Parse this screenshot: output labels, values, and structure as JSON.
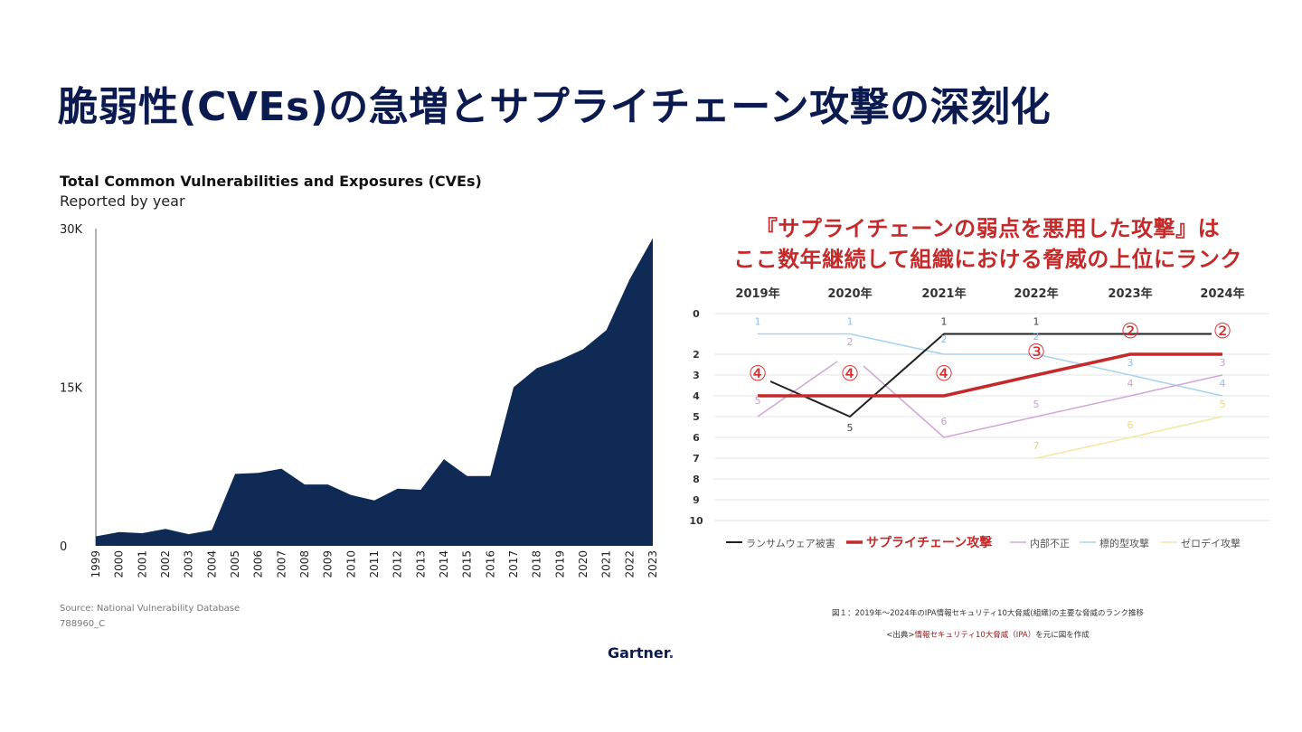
{
  "page": {
    "title": "脆弱性(CVEs)の急増とサプライチェーン攻撃の深刻化"
  },
  "cve_chart": {
    "title": "Total Common Vulnerabilities and Exposures (CVEs)",
    "subtitle": "Reported by year",
    "source": "Source: National Vulnerability Database",
    "id": "788960_C"
  },
  "rank_chart": {
    "headline_line1": "『サプライチェーンの弱点を悪用した攻撃』は",
    "headline_line2": "ここ数年継続して組織における脅威の上位にランク",
    "caption": "図１：2019年～2024年のIPA情報セキュリティ10大脅威(組織)の主要な脅威のランク推移",
    "source_prefix": "<出典>",
    "source_link": "情報セキュリティ10大脅威（IPA）",
    "source_suffix": "を元に図を作成"
  },
  "logo": {
    "text": "Gartner",
    "dot": "."
  },
  "colors": {
    "navy": "#0b1a4f",
    "area_fill": "#0f2a54",
    "accent_red": "#c42a2a",
    "ransomware": "#222222",
    "insider": "#d4a6dc",
    "targeted": "#a9d2ee",
    "zeroday": "#f5e6a3"
  },
  "chart_data": [
    {
      "type": "area",
      "x": [
        "1999",
        "2000",
        "2001",
        "2002",
        "2003",
        "2004",
        "2005",
        "2006",
        "2007",
        "2008",
        "2009",
        "2010",
        "2011",
        "2012",
        "2013",
        "2014",
        "2015",
        "2016",
        "2017",
        "2018",
        "2019",
        "2020",
        "2021",
        "2022",
        "2023"
      ],
      "values": [
        900,
        1300,
        1200,
        1600,
        1100,
        1500,
        6800,
        6900,
        7300,
        5800,
        5800,
        4800,
        4300,
        5400,
        5300,
        8200,
        6600,
        6600,
        15000,
        16800,
        17600,
        18600,
        20400,
        25200,
        29100
      ],
      "yticks": [
        "30K",
        "15K",
        "0"
      ],
      "ylim": [
        0,
        30000
      ]
    },
    {
      "type": "line",
      "x": [
        "2019年",
        "2020年",
        "2021年",
        "2022年",
        "2023年",
        "2024年"
      ],
      "yticks": [
        "0",
        "2",
        "3",
        "4",
        "5",
        "6",
        "7",
        "8",
        "9",
        "10"
      ],
      "ylim": [
        0,
        10
      ],
      "y_inverted": true,
      "series": [
        {
          "name": "ランサムウェア被害",
          "values": [
            3,
            5,
            1,
            1,
            1,
            1
          ],
          "color": "#222222",
          "point_labels": [
            "",
            "5",
            "1",
            "1",
            "",
            ""
          ]
        },
        {
          "name": "サプライチェーン攻撃",
          "values": [
            4,
            4,
            4,
            3,
            2,
            2
          ],
          "color": "#c42a2a",
          "point_labels": [
            "④",
            "④",
            "④",
            "③",
            "②",
            "②"
          ]
        },
        {
          "name": "内部不正",
          "values": [
            5,
            2,
            6,
            5,
            4,
            3
          ],
          "color": "#d4a6dc",
          "point_labels": [
            "5",
            "2",
            "6",
            "5",
            "4",
            "3"
          ]
        },
        {
          "name": "標的型攻撃",
          "values": [
            1,
            1,
            2,
            2,
            3,
            4
          ],
          "color": "#a9d2ee",
          "point_labels": [
            "1",
            "1",
            "2",
            "2",
            "3",
            "4"
          ]
        },
        {
          "name": "ゼロデイ攻撃",
          "values": [
            null,
            null,
            null,
            7,
            6,
            5
          ],
          "color": "#f5e6a3",
          "point_labels": [
            "",
            "",
            "",
            "7",
            "6",
            "5"
          ]
        }
      ]
    }
  ]
}
